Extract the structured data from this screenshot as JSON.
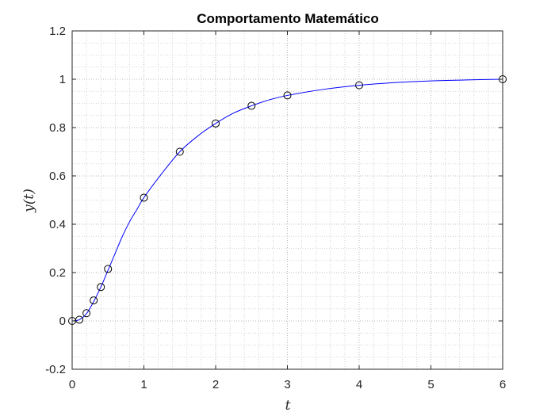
{
  "chart_data": {
    "type": "line",
    "title": "Comportamento Matemático",
    "xlabel": "t",
    "ylabel": "y(t)",
    "xlim": [
      0,
      6
    ],
    "ylim": [
      -0.2,
      1.2
    ],
    "xticks": [
      0,
      1,
      2,
      3,
      4,
      5,
      6
    ],
    "yticks": [
      -0.2,
      0,
      0.2,
      0.4,
      0.6,
      0.8,
      1,
      1.2
    ],
    "xtick_labels": [
      "0",
      "1",
      "2",
      "3",
      "4",
      "5",
      "6"
    ],
    "ytick_labels": [
      "-0.2",
      "0",
      "0.2",
      "0.4",
      "0.6",
      "0.8",
      "1",
      "1.2"
    ],
    "grid": true,
    "minor_grid": true,
    "colors": {
      "curve": "#0000ff",
      "markers": "#000000",
      "axes": "#262626",
      "grid": "#c8c8c8"
    },
    "series": [
      {
        "kind": "line",
        "x": [
          0,
          0.1,
          0.2,
          0.3,
          0.4,
          0.5,
          0.6,
          0.7,
          0.8,
          0.9,
          1.0,
          1.25,
          1.5,
          1.75,
          2.0,
          2.25,
          2.5,
          2.75,
          3.0,
          3.5,
          4.0,
          4.5,
          5.0,
          5.5,
          6.0
        ],
        "y": [
          0,
          0.005,
          0.03,
          0.08,
          0.14,
          0.21,
          0.28,
          0.35,
          0.41,
          0.46,
          0.51,
          0.61,
          0.7,
          0.765,
          0.817,
          0.86,
          0.89,
          0.915,
          0.933,
          0.958,
          0.975,
          0.986,
          0.993,
          0.997,
          1.0
        ]
      },
      {
        "kind": "markers",
        "x": [
          0,
          0.1,
          0.2,
          0.3,
          0.4,
          0.5,
          1.0,
          1.5,
          2.0,
          2.5,
          3.0,
          4.0,
          6.0
        ],
        "y": [
          0,
          0.005,
          0.032,
          0.085,
          0.14,
          0.215,
          0.51,
          0.7,
          0.817,
          0.89,
          0.933,
          0.975,
          1.0
        ]
      }
    ]
  }
}
